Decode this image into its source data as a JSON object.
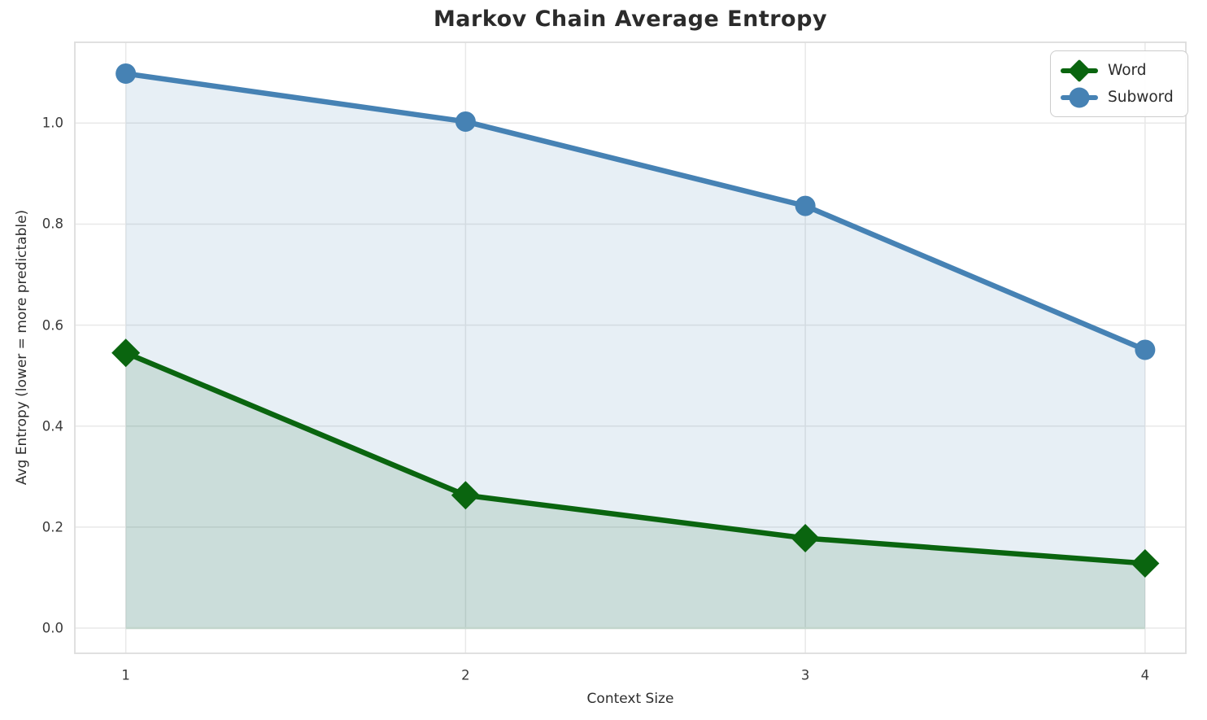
{
  "chart_data": {
    "type": "line",
    "title": "Markov Chain Average Entropy",
    "xlabel": "Context Size",
    "ylabel": "Avg Entropy (lower = more predictable)",
    "x": [
      1,
      2,
      3,
      4
    ],
    "series": [
      {
        "name": "Word",
        "values": [
          0.545,
          0.263,
          0.178,
          0.128
        ],
        "color": "#0a650f",
        "marker": "diamond",
        "fill_alpha": 0.13
      },
      {
        "name": "Subword",
        "values": [
          1.098,
          1.003,
          0.836,
          0.551
        ],
        "color": "#4682b4",
        "marker": "circle",
        "fill_alpha": 0.13
      }
    ],
    "x_ticks": [
      1,
      2,
      3,
      4
    ],
    "x_tick_labels": [
      "1",
      "2",
      "3",
      "4"
    ],
    "y_ticks": [
      0.0,
      0.2,
      0.4,
      0.6,
      0.8,
      1.0
    ],
    "y_tick_labels": [
      "0.0",
      "0.2",
      "0.4",
      "0.6",
      "0.8",
      "1.0"
    ],
    "xlim": [
      0.85,
      4.12
    ],
    "ylim": [
      -0.05,
      1.16
    ],
    "grid": true,
    "fill_to_zero": true,
    "legend_position": "upper right"
  },
  "colors": {
    "grid": "#e8e8e8",
    "spine": "#dcdcdc",
    "area_baseline_edge": "#c2d5cc",
    "title_text": "#2b2b2b",
    "tick_text": "#3a3a3a"
  }
}
